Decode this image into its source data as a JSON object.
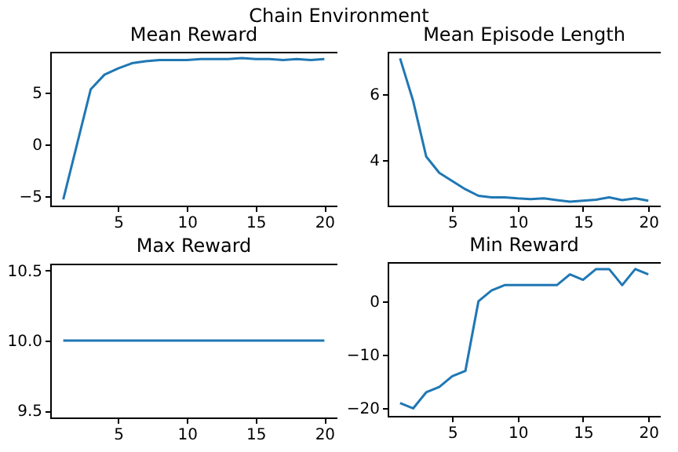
{
  "chart_data": [
    {
      "type": "line",
      "title": "Mean Reward",
      "annotations": [
        "Chain Environment"
      ],
      "x": [
        1,
        2,
        3,
        4,
        5,
        6,
        7,
        8,
        9,
        10,
        11,
        12,
        13,
        14,
        15,
        16,
        17,
        18,
        19,
        20
      ],
      "series": [
        {
          "color": "#1f77b4",
          "values": [
            -5.3,
            0,
            5.3,
            6.7,
            7.3,
            7.8,
            8.0,
            8.1,
            8.1,
            8.1,
            8.2,
            8.2,
            8.2,
            8.3,
            8.2,
            8.2,
            8.1,
            8.2,
            8.1,
            8.2
          ]
        }
      ],
      "xlim": [
        0.05,
        20.95
      ],
      "xticks": [
        5,
        10,
        15,
        20
      ],
      "ylim": [
        -5.9,
        8.9
      ],
      "yticks": [
        -5,
        0,
        5
      ],
      "grid": false
    },
    {
      "type": "line",
      "title": "Mean Episode Length",
      "x": [
        1,
        2,
        3,
        4,
        5,
        6,
        7,
        8,
        9,
        10,
        11,
        12,
        13,
        14,
        15,
        16,
        17,
        18,
        19,
        20
      ],
      "series": [
        {
          "color": "#1f77b4",
          "values": [
            7.1,
            5.8,
            4.1,
            3.6,
            3.35,
            3.1,
            2.9,
            2.85,
            2.85,
            2.82,
            2.8,
            2.82,
            2.77,
            2.72,
            2.75,
            2.78,
            2.85,
            2.77,
            2.82,
            2.75
          ]
        }
      ],
      "xlim": [
        0.05,
        20.95
      ],
      "xticks": [
        5,
        10,
        15,
        20
      ],
      "ylim": [
        2.6,
        7.3
      ],
      "yticks": [
        4,
        6
      ],
      "grid": false
    },
    {
      "type": "line",
      "title": "Max Reward",
      "x": [
        1,
        2,
        3,
        4,
        5,
        6,
        7,
        8,
        9,
        10,
        11,
        12,
        13,
        14,
        15,
        16,
        17,
        18,
        19,
        20
      ],
      "series": [
        {
          "color": "#1f77b4",
          "values": [
            10,
            10,
            10,
            10,
            10,
            10,
            10,
            10,
            10,
            10,
            10,
            10,
            10,
            10,
            10,
            10,
            10,
            10,
            10,
            10
          ]
        }
      ],
      "xlim": [
        0.05,
        20.95
      ],
      "xticks": [
        5,
        10,
        15,
        20
      ],
      "ylim": [
        9.45,
        10.55
      ],
      "yticks": [
        {
          "value": 9.5,
          "label": "9.5"
        },
        {
          "value": 10,
          "label": "10.0"
        },
        {
          "value": 10.5,
          "label": "10.5"
        }
      ],
      "grid": false
    },
    {
      "type": "line",
      "title": "Min Reward",
      "x": [
        1,
        2,
        3,
        4,
        5,
        6,
        7,
        8,
        9,
        10,
        11,
        12,
        13,
        14,
        15,
        16,
        17,
        18,
        19,
        20
      ],
      "series": [
        {
          "color": "#1f77b4",
          "values": [
            -19,
            -20,
            -17,
            -16,
            -14,
            -13,
            0,
            2,
            3,
            3,
            3,
            3,
            3,
            5,
            4,
            6,
            6,
            3,
            6,
            5
          ]
        }
      ],
      "xlim": [
        0.05,
        20.95
      ],
      "xticks": [
        5,
        10,
        15,
        20
      ],
      "ylim": [
        -21.4,
        7.3
      ],
      "yticks": [
        -20,
        -10,
        0
      ],
      "grid": false
    }
  ]
}
